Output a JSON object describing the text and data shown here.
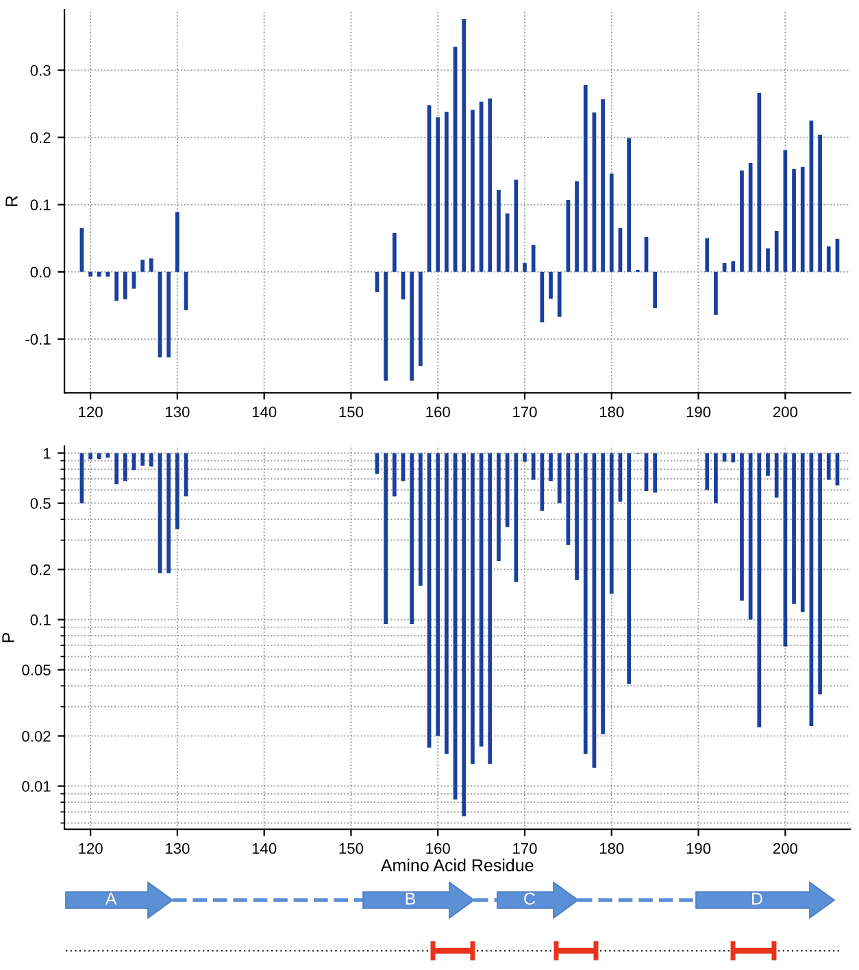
{
  "chart_data": [
    {
      "type": "bar",
      "ylabel": "R",
      "color": "#1a3f9c",
      "x": [
        119,
        120,
        121,
        122,
        123,
        124,
        125,
        126,
        127,
        128,
        129,
        130,
        131,
        153,
        154,
        155,
        156,
        157,
        158,
        159,
        160,
        161,
        162,
        163,
        164,
        165,
        166,
        167,
        168,
        169,
        170,
        171,
        172,
        173,
        174,
        175,
        176,
        177,
        178,
        179,
        180,
        181,
        182,
        183,
        184,
        185,
        191,
        192,
        193,
        194,
        195,
        196,
        197,
        198,
        199,
        200,
        201,
        202,
        203,
        204,
        205,
        206
      ],
      "values": [
        0.065,
        -0.007,
        -0.007,
        -0.007,
        -0.043,
        -0.041,
        -0.025,
        0.018,
        0.02,
        -0.127,
        -0.127,
        0.089,
        -0.057,
        -0.03,
        -0.162,
        0.058,
        -0.041,
        -0.162,
        -0.14,
        0.248,
        0.23,
        0.238,
        0.335,
        0.376,
        0.241,
        0.253,
        0.258,
        0.122,
        0.087,
        0.137,
        0.013,
        0.04,
        -0.075,
        -0.04,
        -0.067,
        0.107,
        0.135,
        0.278,
        0.237,
        0.257,
        0.146,
        0.065,
        0.199,
        0.003,
        0.052,
        -0.054,
        0.05,
        -0.064,
        0.013,
        0.016,
        0.151,
        0.162,
        0.266,
        0.035,
        0.061,
        0.181,
        0.153,
        0.156,
        0.225,
        0.204,
        0.038,
        0.049
      ],
      "xlim": [
        117,
        207.5
      ],
      "xticks": [
        120,
        130,
        140,
        150,
        160,
        170,
        180,
        190,
        200
      ],
      "ylim": [
        -0.18,
        0.39
      ],
      "yticks": [
        -0.1,
        {
          "value": 0,
          "label": "0.0"
        },
        0.1,
        0.2,
        0.3
      ],
      "grid": true
    },
    {
      "type": "bar",
      "ylabel": "P",
      "xlabel": "Amino Acid Residue",
      "color": "#1a3f9c",
      "log": "y",
      "x": [
        119,
        120,
        121,
        122,
        123,
        124,
        125,
        126,
        127,
        128,
        129,
        130,
        131,
        153,
        154,
        155,
        156,
        157,
        158,
        159,
        160,
        161,
        162,
        163,
        164,
        165,
        166,
        167,
        168,
        169,
        170,
        171,
        172,
        173,
        174,
        175,
        176,
        177,
        178,
        179,
        180,
        181,
        182,
        183,
        184,
        185,
        191,
        192,
        193,
        194,
        195,
        196,
        197,
        198,
        199,
        200,
        201,
        202,
        203,
        204,
        205,
        206
      ],
      "base": [
        1,
        1,
        1,
        1,
        1,
        1,
        1,
        1,
        1,
        1,
        1,
        1,
        1,
        1,
        1,
        1,
        1,
        1,
        1,
        1,
        1,
        1,
        1,
        1,
        1,
        1,
        1,
        1,
        1,
        1,
        1,
        1,
        1,
        1,
        1,
        1,
        1,
        1,
        1,
        1,
        1,
        1,
        1,
        1,
        1,
        1,
        1,
        1,
        1,
        1,
        1,
        1,
        1,
        1,
        1,
        1,
        1,
        1,
        1,
        1,
        1,
        1
      ],
      "values": [
        -0.5,
        -0.08,
        -0.08,
        -0.06,
        -0.35,
        -0.32,
        -0.21,
        -0.16,
        -0.17,
        -0.81,
        -0.81,
        -0.65,
        -0.45,
        -0.25,
        -0.906,
        -0.45,
        -0.32,
        -0.906,
        -0.84,
        -0.983,
        -0.98,
        -0.9844,
        -0.9917,
        -0.9934,
        -0.9864,
        -0.9827,
        -0.9864,
        -0.775,
        -0.64,
        -0.832,
        -0.11,
        -0.31,
        -0.55,
        -0.32,
        -0.5,
        -0.72,
        -0.827,
        -0.9844,
        -0.9871,
        -0.9795,
        -0.857,
        -0.49,
        -0.959,
        -0.01,
        -0.41,
        -0.42,
        -0.4,
        -0.5,
        -0.11,
        -0.12,
        -0.87,
        -0.9,
        -0.9774,
        -0.27,
        -0.46,
        -0.931,
        -0.876,
        -0.889,
        -0.9771,
        -0.9644,
        -0.31,
        -0.36
      ],
      "xlim": [
        117,
        207.5
      ],
      "xticks": [
        120,
        130,
        140,
        150,
        160,
        170,
        180,
        190,
        200
      ],
      "ylim": [
        0.0055,
        1.1
      ],
      "yticks": [
        0.01,
        0.02,
        0.05,
        0.1,
        0.2,
        0.5,
        1
      ],
      "grid": true
    },
    {
      "type": "other",
      "annotations": [
        "A",
        "B",
        "C",
        "D"
      ]
    }
  ]
}
